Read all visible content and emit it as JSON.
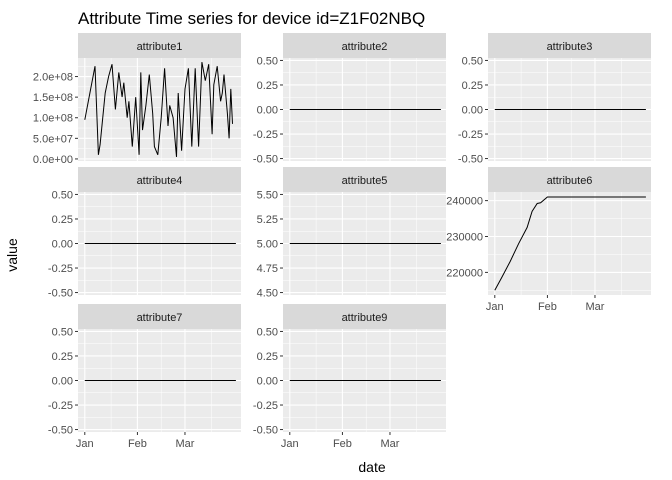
{
  "chart_data": {
    "type": "line",
    "title": "Attribute Time series for device id=Z1F02NBQ",
    "xlabel": "date",
    "ylabel": "value",
    "x_ticks": [
      "Jan",
      "Feb",
      "Mar"
    ],
    "x_tick_dates": [
      "2015-01-01",
      "2015-02-01",
      "2015-03-01"
    ],
    "x_range": [
      "2014-12-28",
      "2015-04-03"
    ],
    "grid": true,
    "colors": {
      "panel_bg": "#EBEBEB",
      "strip_bg": "#D9D9D9",
      "grid": "#FFFFFF",
      "line": "#000000",
      "text": "#4D4D4D"
    },
    "panels": [
      {
        "name": "attribute1",
        "ylim": [
          -5000000.0,
          245000000.0
        ],
        "y_ticks": [
          0,
          50000000.0,
          100000000.0,
          150000000.0,
          200000000.0
        ],
        "y_tick_labels": [
          "0.0e+00",
          "5.0e+07",
          "1.0e+08",
          "1.5e+08",
          "2.0e+08"
        ],
        "x_ticks_shown": false,
        "series": [
          {
            "x": [
              "2015-01-01",
              "2015-01-04",
              "2015-01-07",
              "2015-01-09",
              "2015-01-10",
              "2015-01-13",
              "2015-01-15",
              "2015-01-17",
              "2015-01-19",
              "2015-01-21",
              "2015-01-23",
              "2015-01-24",
              "2015-01-26",
              "2015-01-27",
              "2015-01-29",
              "2015-01-31",
              "2015-02-02",
              "2015-02-03",
              "2015-02-04",
              "2015-02-06",
              "2015-02-08",
              "2015-02-10",
              "2015-02-11",
              "2015-02-13",
              "2015-02-15",
              "2015-02-17",
              "2015-02-19",
              "2015-02-20",
              "2015-02-22",
              "2015-02-24",
              "2015-02-25",
              "2015-02-27",
              "2015-03-01",
              "2015-03-03",
              "2015-03-05",
              "2015-03-07",
              "2015-03-09",
              "2015-03-11",
              "2015-03-13",
              "2015-03-15",
              "2015-03-17",
              "2015-03-18",
              "2015-03-20",
              "2015-03-22",
              "2015-03-23",
              "2015-03-24",
              "2015-03-26",
              "2015-03-27",
              "2015-03-28",
              "2015-03-29"
            ],
            "y": [
              95000000.0,
              160000000.0,
              225000000.0,
              10000000.0,
              35000000.0,
              160000000.0,
              200000000.0,
              230000000.0,
              120000000.0,
              210000000.0,
              150000000.0,
              185000000.0,
              100000000.0,
              140000000.0,
              30000000.0,
              150000000.0,
              10000000.0,
              210000000.0,
              70000000.0,
              130000000.0,
              205000000.0,
              110000000.0,
              30000000.0,
              10000000.0,
              100000000.0,
              220000000.0,
              80000000.0,
              130000000.0,
              100000000.0,
              5000000.0,
              160000000.0,
              20000000.0,
              170000000.0,
              220000000.0,
              30000000.0,
              220000000.0,
              30000000.0,
              235000000.0,
              190000000.0,
              230000000.0,
              60000000.0,
              180000000.0,
              225000000.0,
              140000000.0,
              160000000.0,
              205000000.0,
              110000000.0,
              50000000.0,
              170000000.0,
              85000000.0
            ]
          }
        ]
      },
      {
        "name": "attribute2",
        "ylim": [
          -0.525,
          0.525
        ],
        "y_ticks": [
          -0.5,
          -0.25,
          0,
          0.25,
          0.5
        ],
        "y_tick_labels": [
          "-0.50",
          "-0.25",
          "0.00",
          "0.25",
          "0.50"
        ],
        "x_ticks_shown": false,
        "series": [
          {
            "x": [
              "2015-01-01",
              "2015-03-31"
            ],
            "y": [
              0,
              0
            ]
          }
        ]
      },
      {
        "name": "attribute3",
        "ylim": [
          -0.525,
          0.525
        ],
        "y_ticks": [
          -0.5,
          -0.25,
          0,
          0.25,
          0.5
        ],
        "y_tick_labels": [
          "-0.50",
          "-0.25",
          "0.00",
          "0.25",
          "0.50"
        ],
        "x_ticks_shown": false,
        "series": [
          {
            "x": [
              "2015-01-01",
              "2015-03-31"
            ],
            "y": [
              0,
              0
            ]
          }
        ]
      },
      {
        "name": "attribute4",
        "ylim": [
          -0.525,
          0.525
        ],
        "y_ticks": [
          -0.5,
          -0.25,
          0,
          0.25,
          0.5
        ],
        "y_tick_labels": [
          "-0.50",
          "-0.25",
          "0.00",
          "0.25",
          "0.50"
        ],
        "x_ticks_shown": false,
        "series": [
          {
            "x": [
              "2015-01-01",
              "2015-03-31"
            ],
            "y": [
              0,
              0
            ]
          }
        ]
      },
      {
        "name": "attribute5",
        "ylim": [
          4.475,
          5.525
        ],
        "y_ticks": [
          4.5,
          4.75,
          5.0,
          5.25,
          5.5
        ],
        "y_tick_labels": [
          "4.50",
          "4.75",
          "5.00",
          "5.25",
          "5.50"
        ],
        "x_ticks_shown": false,
        "series": [
          {
            "x": [
              "2015-01-01",
              "2015-03-31"
            ],
            "y": [
              5,
              5
            ]
          }
        ]
      },
      {
        "name": "attribute6",
        "ylim": [
          213700,
          242400
        ],
        "y_ticks": [
          220000,
          230000,
          240000
        ],
        "y_tick_labels": [
          "220000",
          "230000",
          "240000"
        ],
        "x_ticks_shown": true,
        "series": [
          {
            "x": [
              "2015-01-01",
              "2015-01-05",
              "2015-01-10",
              "2015-01-15",
              "2015-01-20",
              "2015-01-23",
              "2015-01-26",
              "2015-01-28",
              "2015-02-01",
              "2015-02-10",
              "2015-02-20",
              "2015-03-31"
            ],
            "y": [
              215000,
              218500,
              223000,
              228000,
              232500,
              237000,
              239200,
              239400,
              241000,
              241000,
              241000,
              241000
            ]
          }
        ]
      },
      {
        "name": "attribute7",
        "ylim": [
          -0.525,
          0.525
        ],
        "y_ticks": [
          -0.5,
          -0.25,
          0,
          0.25,
          0.5
        ],
        "y_tick_labels": [
          "-0.50",
          "-0.25",
          "0.00",
          "0.25",
          "0.50"
        ],
        "x_ticks_shown": true,
        "series": [
          {
            "x": [
              "2015-01-01",
              "2015-03-31"
            ],
            "y": [
              0,
              0
            ]
          }
        ]
      },
      {
        "name": "attribute9",
        "ylim": [
          -0.525,
          0.525
        ],
        "y_ticks": [
          -0.5,
          -0.25,
          0,
          0.25,
          0.5
        ],
        "y_tick_labels": [
          "-0.50",
          "-0.25",
          "0.00",
          "0.25",
          "0.50"
        ],
        "x_ticks_shown": true,
        "series": [
          {
            "x": [
              "2015-01-01",
              "2015-03-31"
            ],
            "y": [
              0,
              0
            ]
          }
        ]
      }
    ]
  }
}
